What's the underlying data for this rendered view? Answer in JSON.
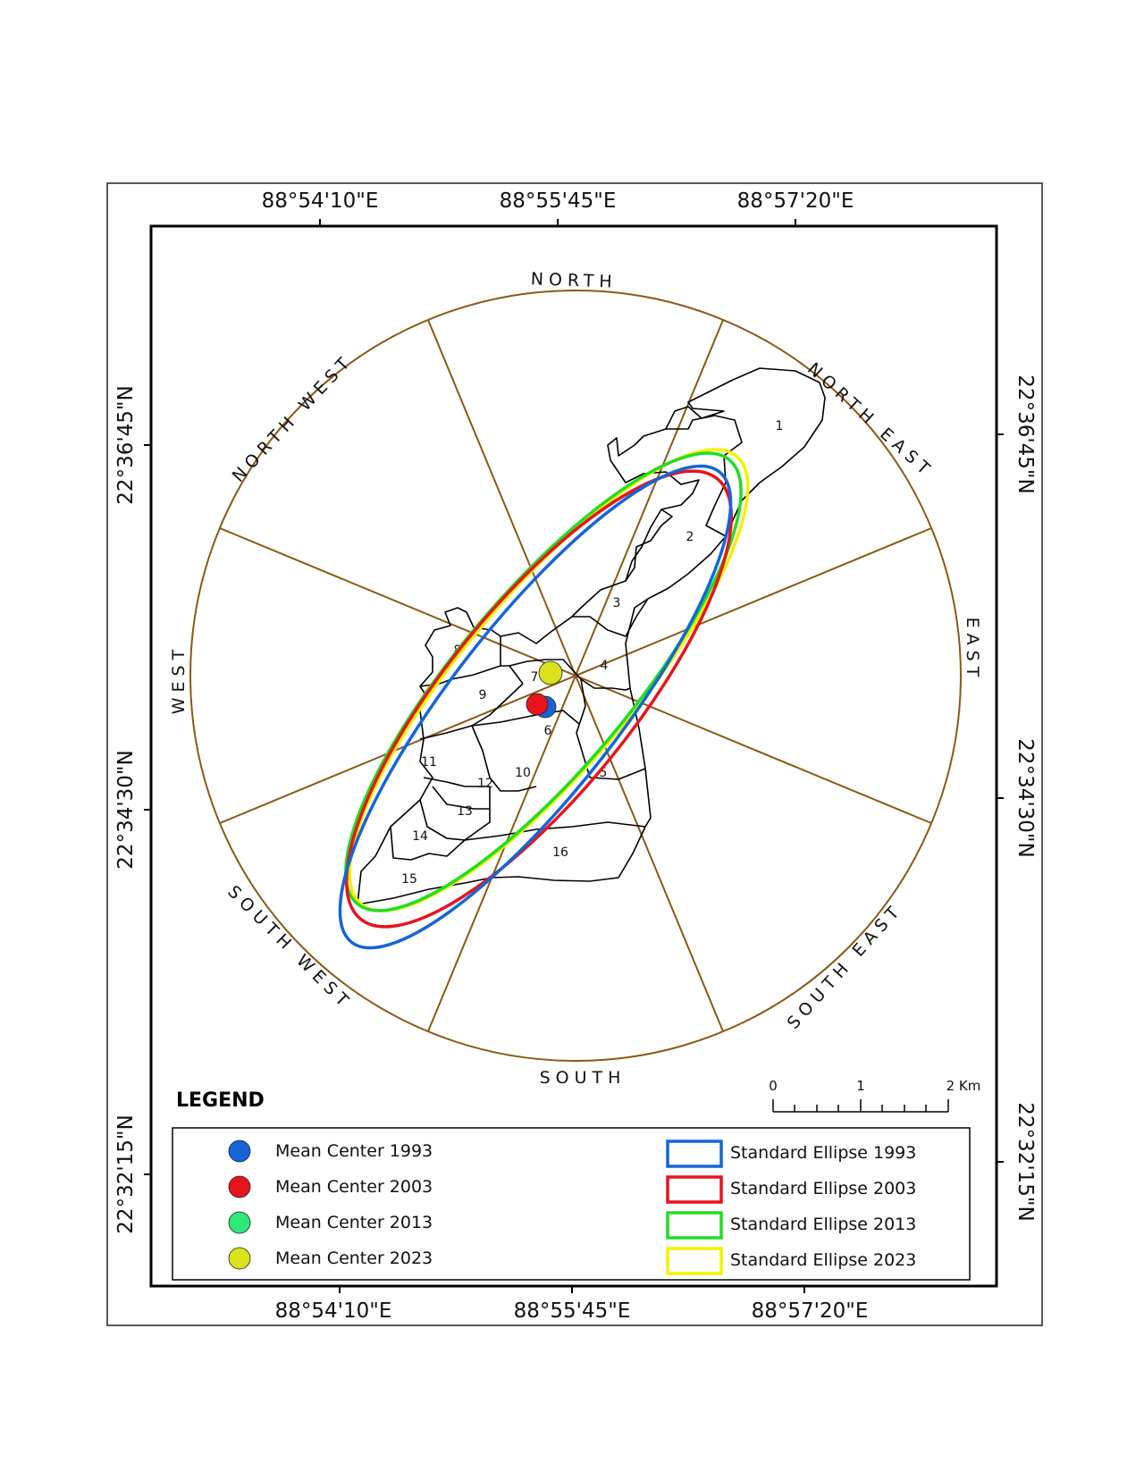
{
  "map": {
    "lon_labels": [
      "88°54'10\"E",
      "88°55'45\"E",
      "88°57'20\"E"
    ],
    "lat_labels_left": [
      "22°36'45\"N",
      "22°34'30\"N",
      "22°32'15\"N"
    ],
    "lat_labels_right": [
      "22°36'45\"N",
      "22°34'30\"N",
      "22°32'15\"N"
    ],
    "directions": {
      "north": "NORTH",
      "north_east": "NORTH EAST",
      "east": "EAST",
      "south_east": "SOUTH EAST",
      "south": "SOUTH",
      "south_west": "SOUTH WEST",
      "west": "WEST",
      "north_west": "NORTH WEST"
    },
    "wards": [
      "1",
      "2",
      "3",
      "4",
      "5",
      "6",
      "7",
      "8",
      "9",
      "10",
      "11",
      "12",
      "13",
      "14",
      "15",
      "16"
    ],
    "sector_color": "#8a5a14"
  },
  "colors": {
    "c1993": "#1565d8",
    "c2003": "#e8141c",
    "c2013": "#22dd22",
    "c2023": "#f2f200",
    "mc2013": "#2ee87a",
    "mc2023": "#d9e21a"
  },
  "legend": {
    "title": "LEGEND",
    "mean_centers": [
      "Mean Center 1993",
      "Mean Center 2003",
      "Mean Center 2013",
      "Mean Center 2023"
    ],
    "ellipses": [
      "Standard Ellipse 1993",
      "Standard Ellipse 2003",
      "Standard Ellipse 2013",
      "Standard Ellipse 2023"
    ]
  },
  "scale": {
    "labels": [
      "0",
      "1",
      "2 Km"
    ]
  }
}
